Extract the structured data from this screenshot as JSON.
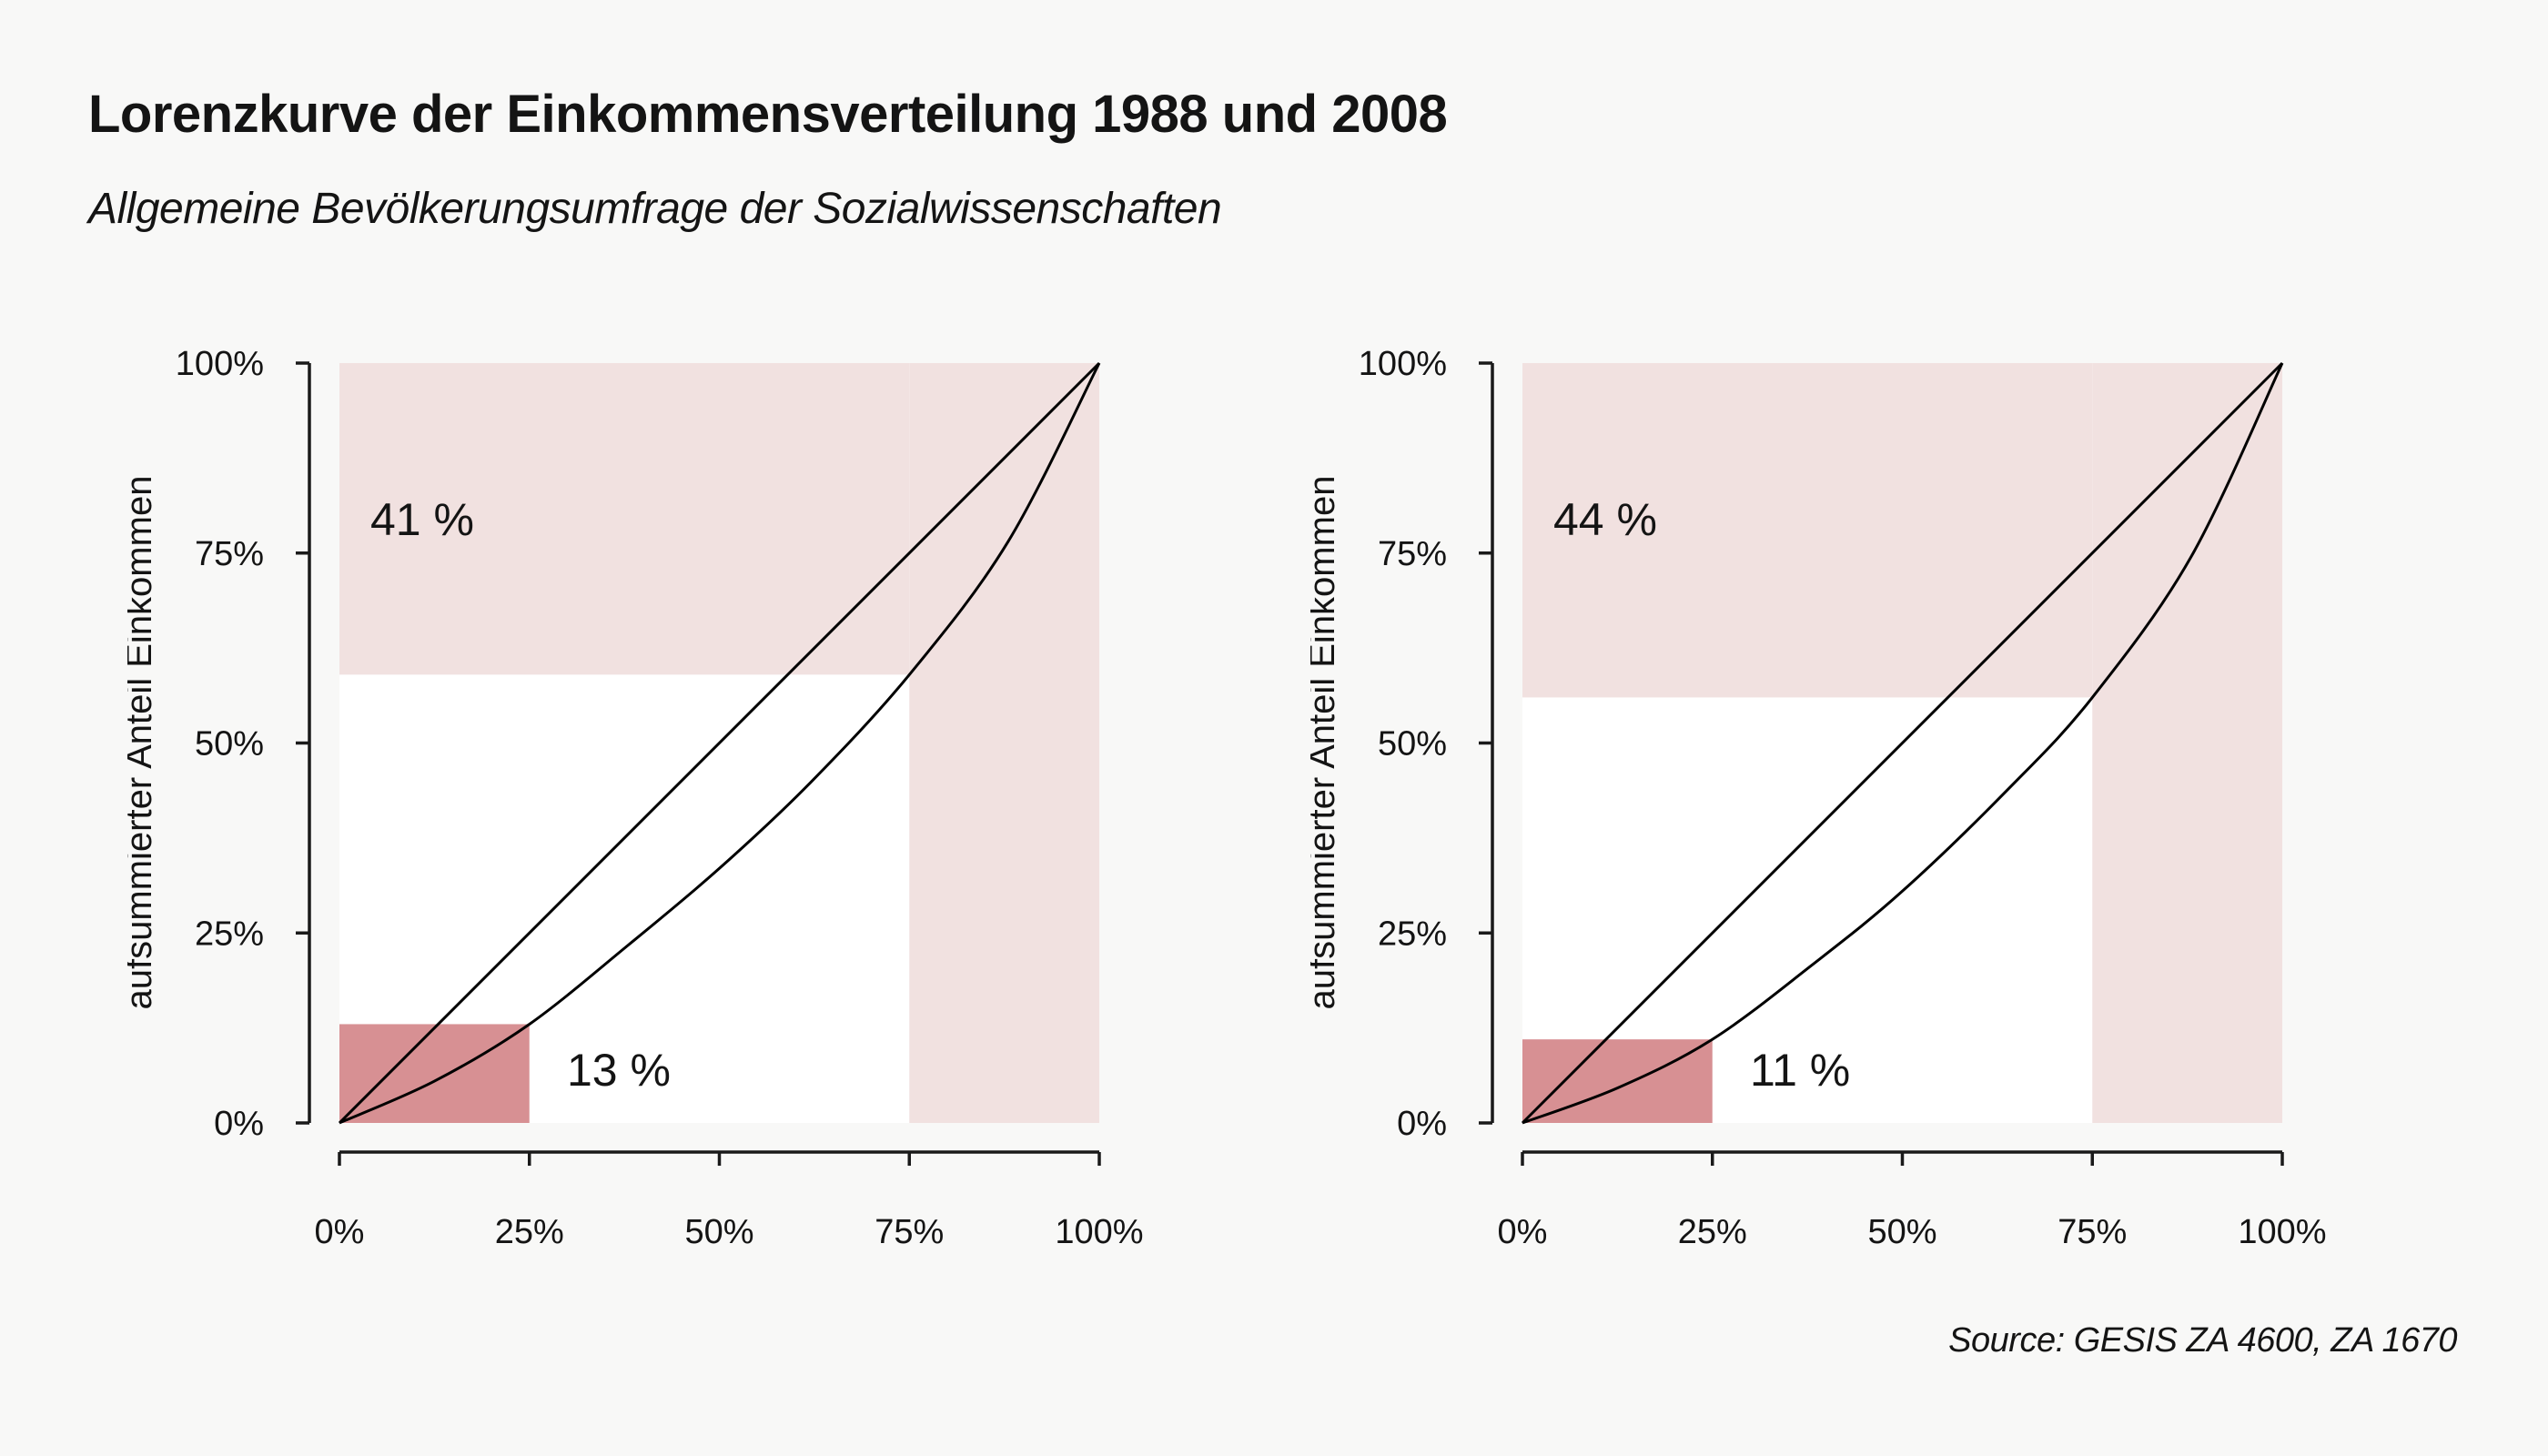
{
  "header": {
    "title": "Lorenzkurve der Einkommensverteilung 1988 und 2008",
    "subtitle": "Allgemeine Bevölkerungsumfrage der Sozialwissenschaften"
  },
  "source_note": "Source: GESIS ZA 4600, ZA 1670",
  "colors": {
    "background": "#f8f8f7",
    "shade_light": "#f1e1e0",
    "shade_strong": "#d79093",
    "curve_line": "#000000",
    "axis": "#1a1a1a",
    "text": "#141414"
  },
  "chart_data": [
    {
      "type": "line",
      "year": "1988",
      "ylabel": "aufsummierter Anteil Einkommen",
      "x_ticks": [
        "0%",
        "25%",
        "50%",
        "75%",
        "100%"
      ],
      "y_ticks": [
        "0%",
        "25%",
        "50%",
        "75%",
        "100%"
      ],
      "xlim": [
        0,
        100
      ],
      "ylim": [
        0,
        100
      ],
      "grid": false,
      "equality_line": [
        [
          0,
          0
        ],
        [
          100,
          100
        ]
      ],
      "lorenz_points": [
        [
          0,
          0
        ],
        [
          12.5,
          5.5
        ],
        [
          25,
          13
        ],
        [
          38,
          23.4
        ],
        [
          50,
          33.5
        ],
        [
          62,
          44.8
        ],
        [
          75,
          59
        ],
        [
          88,
          76.5
        ],
        [
          100,
          100
        ]
      ],
      "highlights": {
        "richest_quarter": {
          "population_from_pct": 75,
          "income_share_pct": 41,
          "label": "41 %"
        },
        "poorest_quarter": {
          "population_to_pct": 25,
          "income_share_pct": 13,
          "label": "13 %"
        }
      }
    },
    {
      "type": "line",
      "year": "2008",
      "ylabel": "aufsummierter Anteil Einkommen",
      "x_ticks": [
        "0%",
        "25%",
        "50%",
        "75%",
        "100%"
      ],
      "y_ticks": [
        "0%",
        "25%",
        "50%",
        "75%",
        "100%"
      ],
      "xlim": [
        0,
        100
      ],
      "ylim": [
        0,
        100
      ],
      "grid": false,
      "equality_line": [
        [
          0,
          0
        ],
        [
          100,
          100
        ]
      ],
      "lorenz_points": [
        [
          0,
          0
        ],
        [
          12.5,
          4.6
        ],
        [
          25,
          11
        ],
        [
          38,
          20.7
        ],
        [
          50,
          30.5
        ],
        [
          64,
          44
        ],
        [
          75,
          56
        ],
        [
          88,
          74.5
        ],
        [
          100,
          100
        ]
      ],
      "highlights": {
        "richest_quarter": {
          "population_from_pct": 75,
          "income_share_pct": 44,
          "label": "44 %"
        },
        "poorest_quarter": {
          "population_to_pct": 25,
          "income_share_pct": 11,
          "label": "11 %"
        }
      }
    }
  ]
}
